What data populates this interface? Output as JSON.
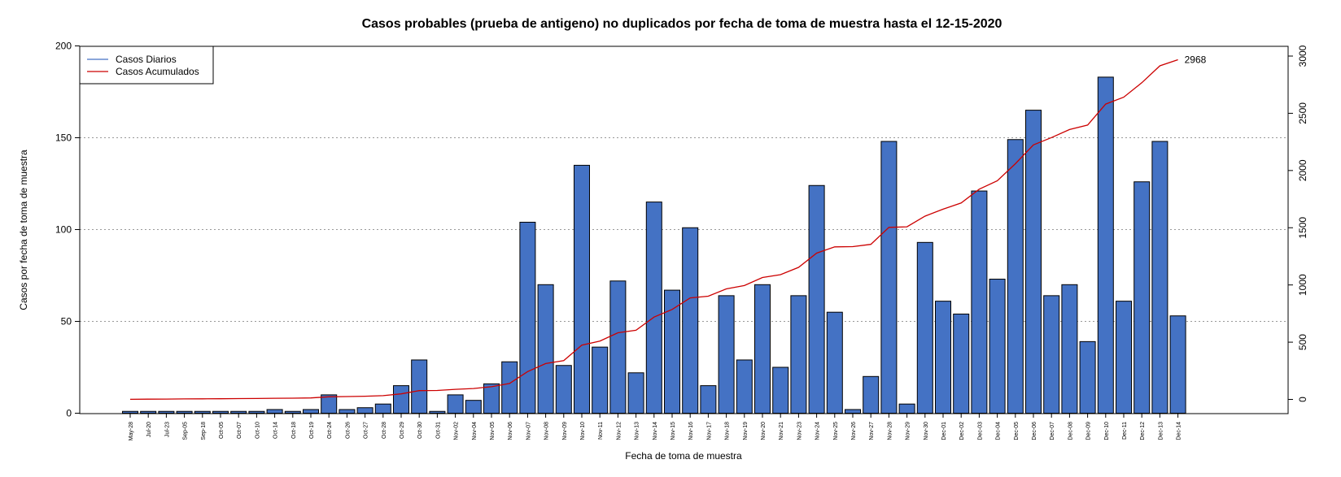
{
  "chart_data": {
    "type": "bar",
    "title": "Casos probables (prueba de antigeno) no duplicados por fecha de toma de muestra hasta el 12-15-2020",
    "xlabel": "Fecha de toma de muestra",
    "ylabel": "Casos por fecha de toma de muestra",
    "ylim": [
      0,
      200
    ],
    "y2lim": [
      -120,
      3050
    ],
    "yticks": [
      0,
      50,
      100,
      150,
      200
    ],
    "y2ticks": [
      0,
      500,
      1000,
      1500,
      2000,
      2500,
      3000
    ],
    "grid": "horizontal dotted at 50, 100, 150",
    "legend_position": "top-left",
    "colors": {
      "bars": "#4472C4",
      "cumulative": "#CC0000",
      "grid": "#999999"
    },
    "categories": [
      "May-28",
      "Jul-20",
      "Jul-23",
      "Sep-05",
      "Sep-18",
      "Oct-05",
      "Oct-07",
      "Oct-10",
      "Oct-14",
      "Oct-18",
      "Oct-19",
      "Oct-24",
      "Oct-26",
      "Oct-27",
      "Oct-28",
      "Oct-29",
      "Oct-30",
      "Oct-31",
      "Nov-02",
      "Nov-04",
      "Nov-05",
      "Nov-06",
      "Nov-07",
      "Nov-08",
      "Nov-09",
      "Nov-10",
      "Nov-11",
      "Nov-12",
      "Nov-13",
      "Nov-14",
      "Nov-15",
      "Nov-16",
      "Nov-17",
      "Nov-18",
      "Nov-19",
      "Nov-20",
      "Nov-21",
      "Nov-23",
      "Nov-24",
      "Nov-25",
      "Nov-26",
      "Nov-27",
      "Nov-28",
      "Nov-29",
      "Nov-30",
      "Dec-01",
      "Dec-02",
      "Dec-03",
      "Dec-04",
      "Dec-05",
      "Dec-06",
      "Dec-07",
      "Dec-08",
      "Dec-09",
      "Dec-10",
      "Dec-11",
      "Dec-12",
      "Dec-13",
      "Dec-14"
    ],
    "series": [
      {
        "name": "Casos Diarios",
        "type": "bar",
        "axis": "left",
        "values": [
          1,
          1,
          1,
          1,
          1,
          1,
          1,
          1,
          2,
          1,
          2,
          10,
          2,
          3,
          5,
          15,
          29,
          1,
          10,
          7,
          16,
          28,
          104,
          70,
          26,
          135,
          36,
          72,
          22,
          115,
          67,
          101,
          15,
          64,
          29,
          70,
          25,
          64,
          124,
          55,
          2,
          20,
          148,
          5,
          93,
          61,
          54,
          121,
          73,
          149,
          165,
          64,
          70,
          39,
          183,
          61,
          126,
          148,
          53
        ]
      },
      {
        "name": "Casos Acumulados",
        "type": "line",
        "axis": "right",
        "values": [
          1,
          2,
          3,
          4,
          5,
          6,
          7,
          8,
          10,
          11,
          13,
          23,
          25,
          28,
          33,
          48,
          77,
          78,
          88,
          95,
          111,
          139,
          243,
          313,
          339,
          474,
          510,
          582,
          604,
          719,
          786,
          887,
          902,
          966,
          995,
          1065,
          1090,
          1154,
          1278,
          1333,
          1335,
          1355,
          1503,
          1508,
          1601,
          1662,
          1716,
          1837,
          1910,
          2059,
          2224,
          2288,
          2358,
          2397,
          2580,
          2641,
          2767,
          2915,
          2968
        ]
      }
    ],
    "annotations": [
      "2968"
    ]
  }
}
